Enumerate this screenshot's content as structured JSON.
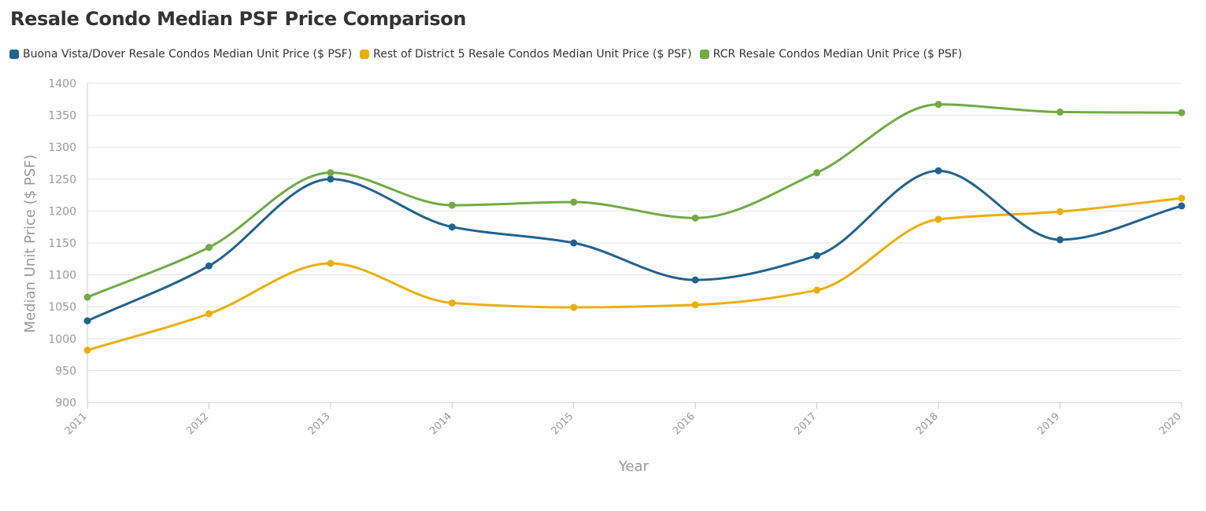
{
  "title": "Resale Condo Median PSF Price Comparison",
  "chart_data": {
    "type": "line",
    "title": "Resale Condo Median PSF Price Comparison",
    "xlabel": "Year",
    "ylabel": "Median Unit Price ($ PSF)",
    "x": [
      "2011",
      "2012",
      "2013",
      "2014",
      "2015",
      "2016",
      "2017",
      "2018",
      "2019",
      "2020"
    ],
    "ylim": [
      900,
      1400
    ],
    "yticks": [
      900,
      950,
      1000,
      1050,
      1100,
      1150,
      1200,
      1250,
      1300,
      1350,
      1400
    ],
    "grid": true,
    "legend_position": "top-left",
    "series": [
      {
        "name": "Buona Vista/Dover Resale Condos Median Unit Price ($ PSF)",
        "color": "#20638f",
        "values": [
          1028,
          1114,
          1250,
          1175,
          1150,
          1092,
          1130,
          1263,
          1155,
          1208
        ]
      },
      {
        "name": "Rest of District 5 Resale Condos Median Unit Price ($ PSF)",
        "color": "#ecae0f",
        "values": [
          982,
          1039,
          1118,
          1056,
          1049,
          1053,
          1076,
          1187,
          1199,
          1220
        ]
      },
      {
        "name": "RCR Resale Condos Median Unit Price ($ PSF)",
        "color": "#70ab46",
        "values": [
          1065,
          1143,
          1260,
          1209,
          1214,
          1189,
          1260,
          1367,
          1355,
          1354
        ]
      }
    ]
  }
}
